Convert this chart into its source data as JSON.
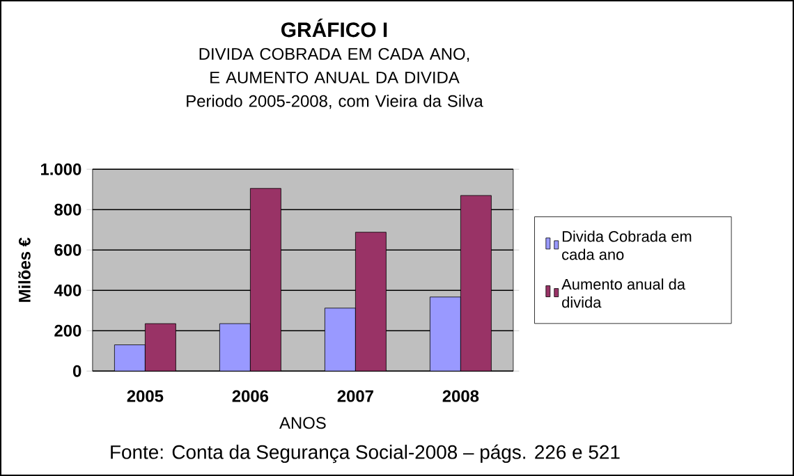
{
  "chart_data": {
    "type": "bar",
    "title": "GRÁFICO I",
    "subtitle": "DIVIDA COBRADA EM CADA ANO, E AUMENTO ANUAL DA DIVIDA Periodo 2005-2008, com Vieira da Silva",
    "xlabel": "ANOS",
    "ylabel": "Milões €",
    "annotations": [
      "Fonte: Conta da Segurança Social-2008 – págs. 226 e 521"
    ],
    "categories": [
      "2005",
      "2006",
      "2007",
      "2008"
    ],
    "series": [
      {
        "name": "Divida Cobrada em cada ano",
        "color": "#9999ff",
        "values": [
          130,
          235,
          312,
          367
        ]
      },
      {
        "name": "Aumento anual da divida",
        "color": "#993366",
        "values": [
          235,
          905,
          688,
          870
        ]
      }
    ],
    "ylim": [
      0,
      1000
    ],
    "yticks": [
      0,
      200,
      400,
      600,
      800,
      {
        "value": 1000,
        "label": "1.000"
      }
    ],
    "grid": "y",
    "legend": "right"
  }
}
